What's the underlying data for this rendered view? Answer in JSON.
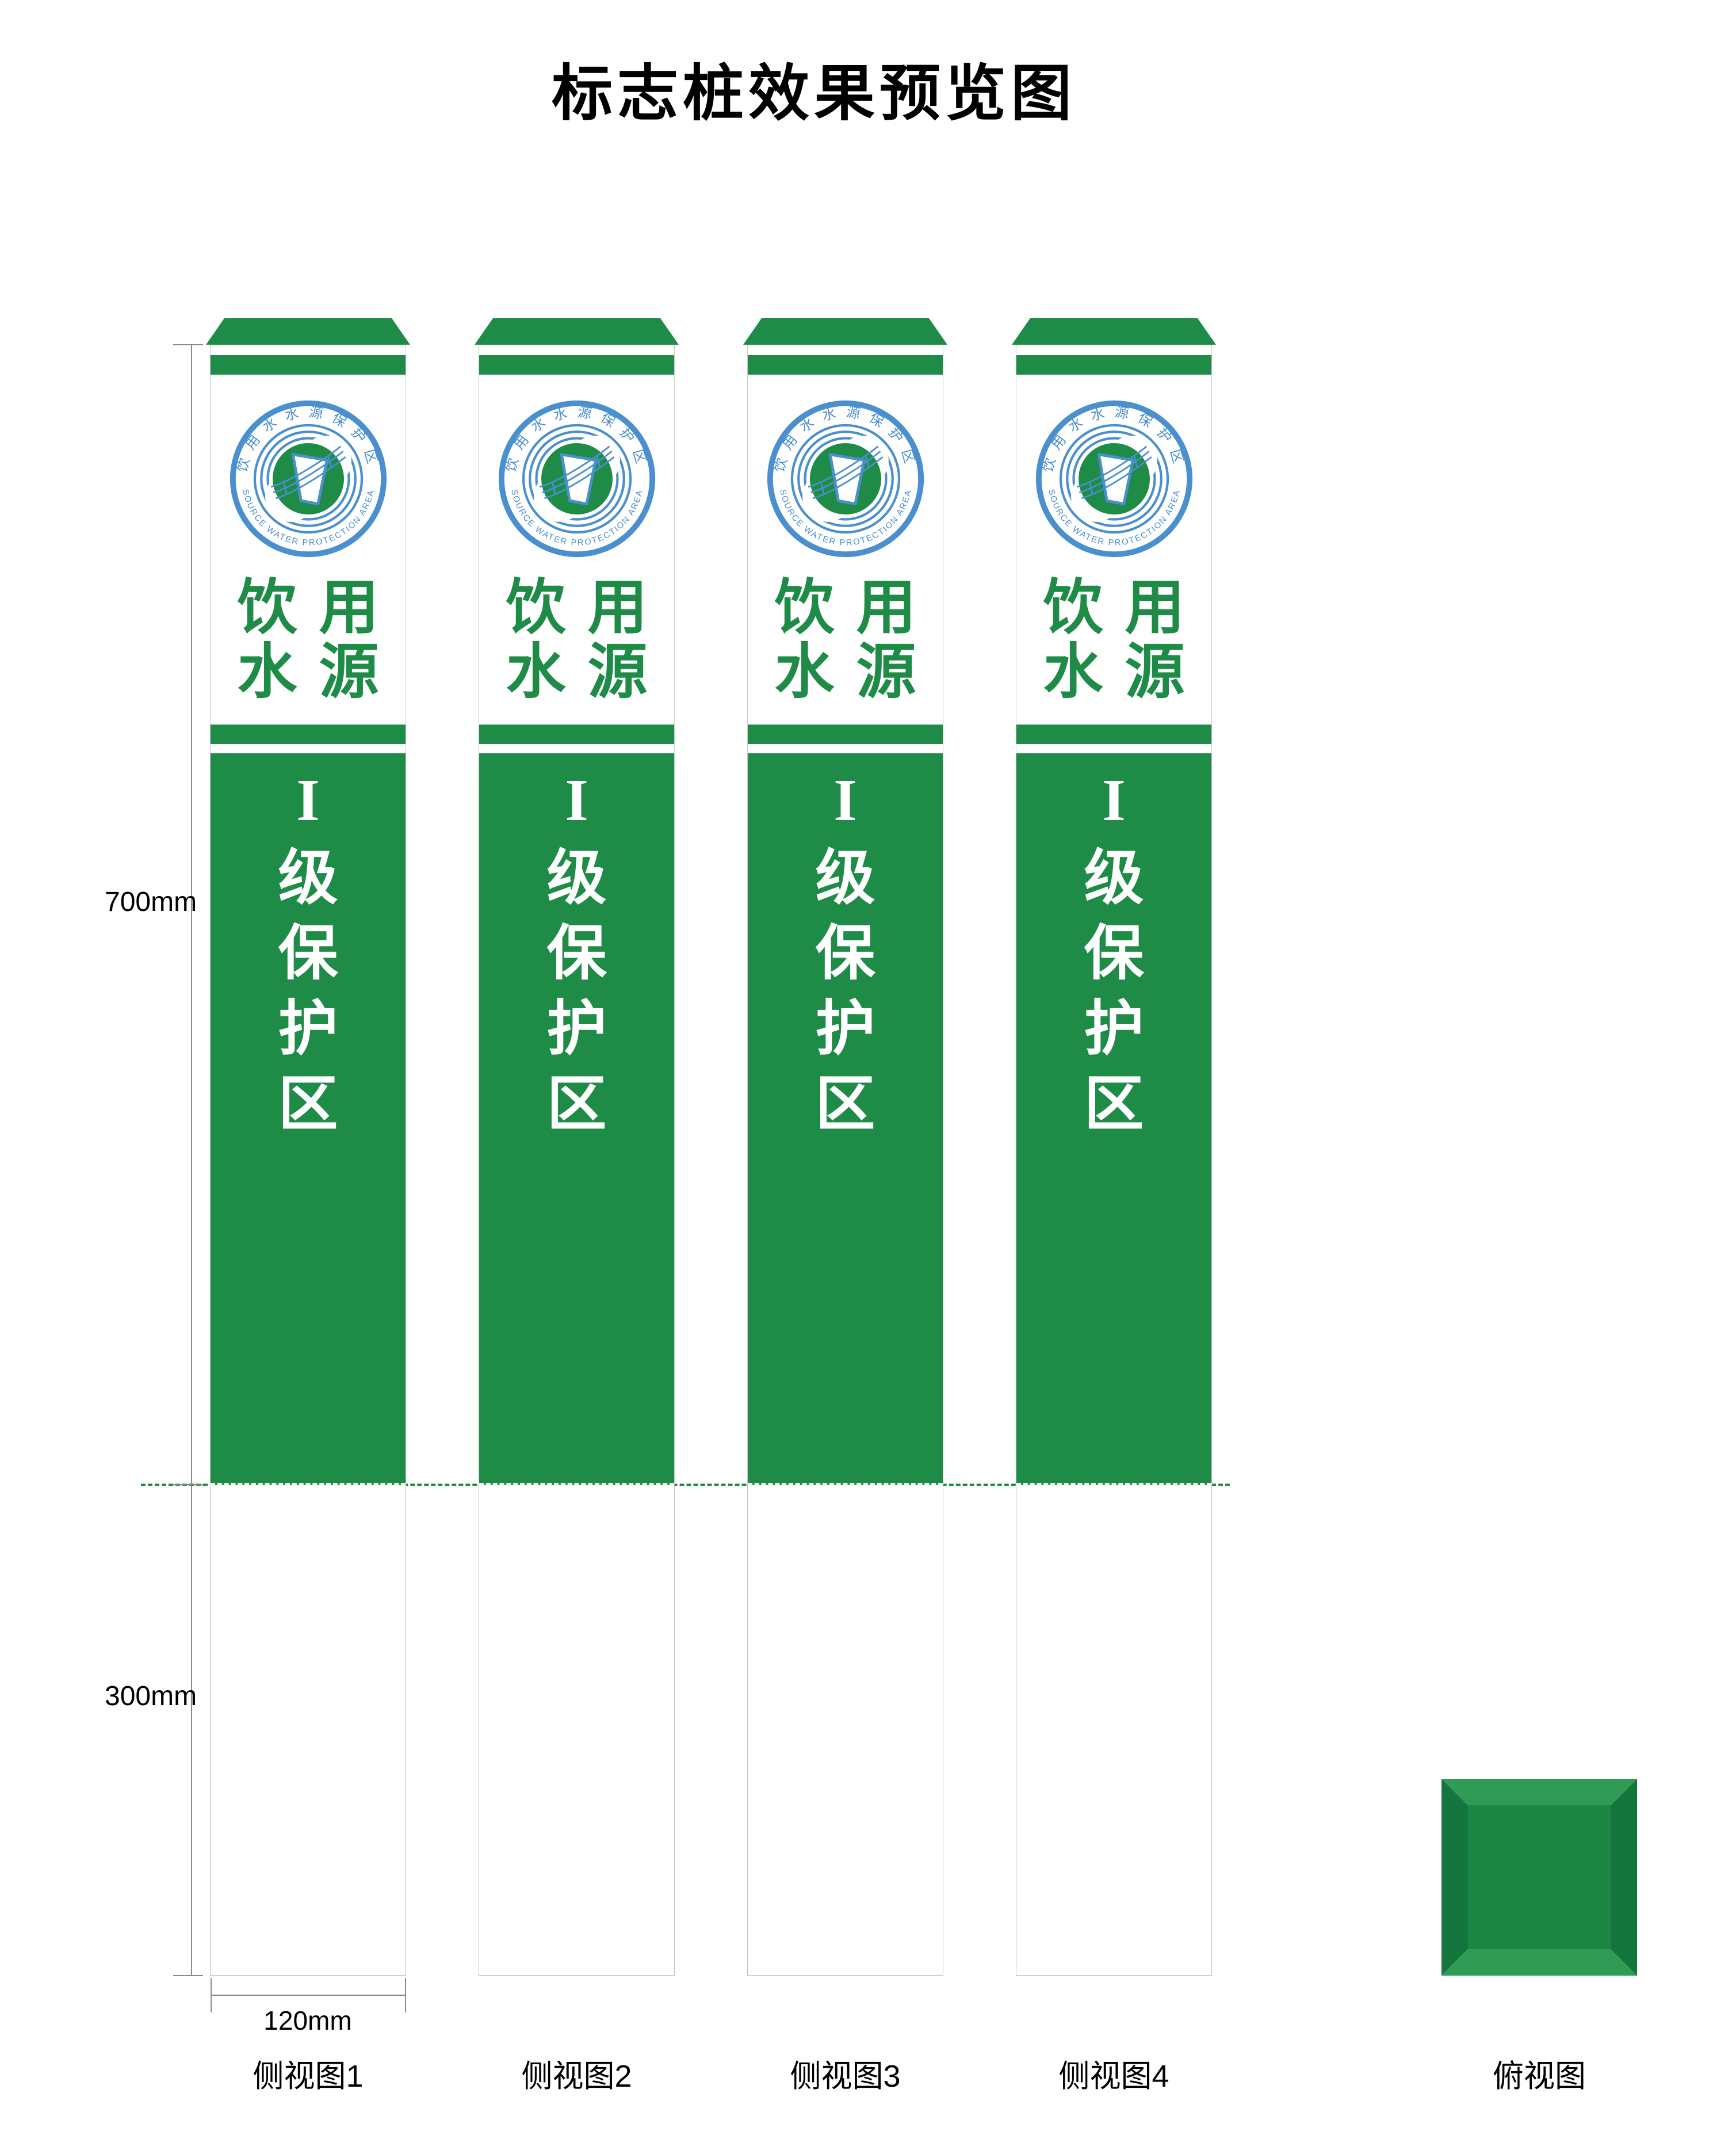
{
  "title": "标志桩效果预览图",
  "colors": {
    "sign_green": "#1e8b46",
    "logo_blue": "#4a8fce",
    "top_view_center": "#1c8745",
    "top_view_light_bevel": "#2f9b55",
    "top_view_dark_bevel": "#14763d",
    "dim_line_gray": "#8a8a8a",
    "title_black": "#000000"
  },
  "logo": {
    "top_text": "饮用水水源保护区",
    "bottom_text": "SOURCE WATER PROTECTION AREA"
  },
  "pillar": {
    "line1": "饮用",
    "line2": "水源",
    "grade": "I",
    "vertical_chars": [
      "级",
      "保",
      "护",
      "区"
    ]
  },
  "dimensions": {
    "height_above_ground": "700mm",
    "height_below_ground": "300mm",
    "width": "120mm"
  },
  "labels": {
    "side_views": [
      "侧视图1",
      "侧视图2",
      "侧视图3",
      "侧视图4"
    ],
    "top_view": "俯视图"
  }
}
